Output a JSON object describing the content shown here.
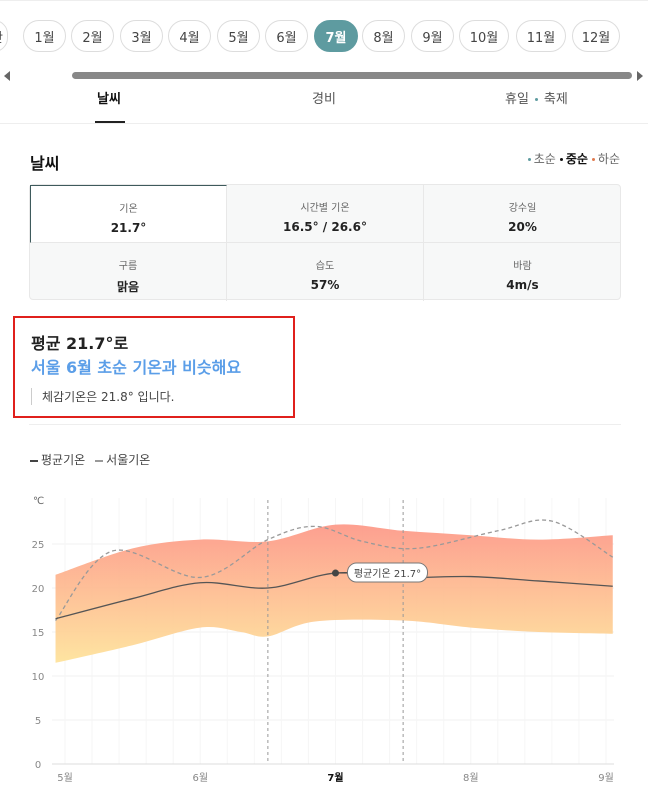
{
  "months": {
    "items": [
      "간",
      "1월",
      "2월",
      "3월",
      "4월",
      "5월",
      "6월",
      "7월",
      "8월",
      "9월",
      "10월",
      "11월",
      "12월"
    ],
    "active_index": 7
  },
  "tabs": {
    "weather": "날씨",
    "cost": "경비",
    "holiday": "휴일",
    "festival": "축제"
  },
  "weather": {
    "title": "날씨",
    "periods": [
      "초순",
      "중순",
      "하순"
    ],
    "selected_period": "중순",
    "cells": [
      {
        "key": "기온",
        "value": "21.7°"
      },
      {
        "key": "시간별 기온",
        "value": "16.5° / 26.6°"
      },
      {
        "key": "강수일",
        "value": "20%"
      },
      {
        "key": "구름",
        "value": "맑음"
      },
      {
        "key": "습도",
        "value": "57%"
      },
      {
        "key": "바람",
        "value": "4m/s"
      }
    ]
  },
  "summary": {
    "line1": "평균 21.7°로",
    "line2": "서울 6월 초순 기온과 비슷해요",
    "line3": "체감기온은 21.8° 입니다."
  },
  "legend": {
    "avg": "평균기온",
    "seoul": "서울기온"
  },
  "colors": {
    "accent": "#5e9ba0",
    "highlight": "#5b9ee8",
    "box_border": "#e0201c",
    "band_top": "#fd9a8a",
    "band_bottom": "#fee39c"
  },
  "chart_data": {
    "type": "area",
    "unit": "℃",
    "ylim": [
      0,
      28
    ],
    "yticks": [
      0,
      5,
      10,
      15,
      20,
      25
    ],
    "xticks": [
      {
        "x": 0,
        "label": "5월"
      },
      {
        "x": 1,
        "label": "6월"
      },
      {
        "x": 2,
        "label": "7월"
      },
      {
        "x": 3,
        "label": "8월"
      },
      {
        "x": 4,
        "label": "9월"
      }
    ],
    "highlight_range": [
      1.5,
      2.5
    ],
    "series": [
      {
        "name": "평균기온",
        "x": [
          -0.07,
          0.5,
          1.0,
          1.5,
          2.0,
          2.5,
          3.0,
          3.5,
          4.05
        ],
        "values": [
          16.5,
          18.8,
          20.6,
          20.0,
          21.7,
          21.2,
          21.3,
          20.8,
          20.2
        ]
      },
      {
        "name": "서울기온",
        "x": [
          -0.07,
          0.35,
          1.0,
          1.5,
          1.85,
          2.2,
          2.6,
          3.2,
          3.6,
          4.05
        ],
        "values": [
          16.3,
          24.2,
          21.2,
          25.5,
          27.0,
          25.3,
          24.5,
          26.5,
          27.6,
          23.5
        ]
      },
      {
        "name": "upper",
        "x": [
          -0.07,
          0.5,
          1.0,
          1.5,
          2.0,
          2.5,
          3.0,
          3.5,
          4.05
        ],
        "values": [
          21.5,
          24.5,
          25.5,
          25.3,
          27.2,
          26.5,
          26.0,
          25.5,
          26.0
        ]
      },
      {
        "name": "lower",
        "x": [
          -0.07,
          0.5,
          1.0,
          1.3,
          1.5,
          1.85,
          2.5,
          3.0,
          3.5,
          4.05
        ],
        "values": [
          11.5,
          13.5,
          15.5,
          15.0,
          14.5,
          16.2,
          16.3,
          15.5,
          15.0,
          14.8
        ]
      }
    ],
    "annotation": {
      "x": 2.0,
      "y": 21.7,
      "label": "평균기온 21.7°"
    }
  }
}
